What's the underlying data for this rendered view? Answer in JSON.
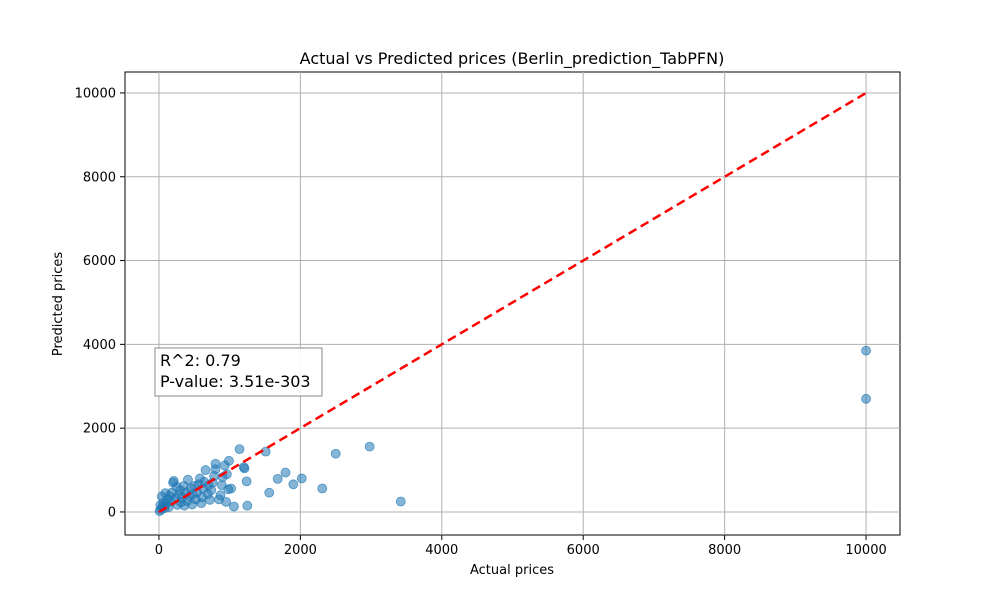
{
  "chart_data": {
    "type": "scatter",
    "title": "Actual vs Predicted prices (Berlin_prediction_TabPFN)",
    "xlabel": "Actual prices",
    "ylabel": "Predicted prices",
    "xlim": [
      -480,
      10480
    ],
    "ylim": [
      -550,
      10500
    ],
    "xticks": [
      0,
      2000,
      4000,
      6000,
      8000,
      10000
    ],
    "yticks": [
      0,
      2000,
      4000,
      6000,
      8000,
      10000
    ],
    "grid": true,
    "annotation": [
      "R^2: 0.79",
      "P-value: 3.51e-303"
    ],
    "reference_line": {
      "x": [
        0,
        10000
      ],
      "y": [
        0,
        10000
      ],
      "color": "#ff0000",
      "style": "dashed"
    },
    "series": [
      {
        "color": "#1f77b4",
        "points": [
          [
            10000,
            3850
          ],
          [
            10000,
            2700
          ],
          [
            3420,
            250
          ],
          [
            2980,
            1560
          ],
          [
            2500,
            1390
          ],
          [
            2310,
            560
          ],
          [
            2020,
            800
          ],
          [
            1900,
            660
          ],
          [
            1790,
            940
          ],
          [
            1680,
            790
          ],
          [
            1560,
            460
          ],
          [
            1510,
            1440
          ],
          [
            1250,
            150
          ],
          [
            1240,
            730
          ],
          [
            1200,
            1070
          ],
          [
            1210,
            1040
          ],
          [
            1140,
            1500
          ],
          [
            1060,
            130
          ],
          [
            1020,
            560
          ],
          [
            990,
            1220
          ],
          [
            980,
            540
          ],
          [
            960,
            900
          ],
          [
            950,
            240
          ],
          [
            930,
            1110
          ],
          [
            900,
            830
          ],
          [
            890,
            640
          ],
          [
            870,
            400
          ],
          [
            850,
            300
          ],
          [
            800,
            1150
          ],
          [
            800,
            1020
          ],
          [
            780,
            860
          ],
          [
            760,
            700
          ],
          [
            740,
            520
          ],
          [
            720,
            290
          ],
          [
            700,
            640
          ],
          [
            690,
            430
          ],
          [
            660,
            1000
          ],
          [
            640,
            720
          ],
          [
            620,
            560
          ],
          [
            610,
            350
          ],
          [
            600,
            210
          ],
          [
            580,
            800
          ],
          [
            560,
            660
          ],
          [
            540,
            470
          ],
          [
            520,
            300
          ],
          [
            500,
            620
          ],
          [
            480,
            420
          ],
          [
            470,
            180
          ],
          [
            450,
            560
          ],
          [
            430,
            380
          ],
          [
            410,
            770
          ],
          [
            400,
            260
          ],
          [
            380,
            470
          ],
          [
            360,
            150
          ],
          [
            350,
            620
          ],
          [
            330,
            350
          ],
          [
            310,
            230
          ],
          [
            300,
            520
          ],
          [
            280,
            410
          ],
          [
            260,
            170
          ],
          [
            250,
            600
          ],
          [
            230,
            320
          ],
          [
            210,
            740
          ],
          [
            200,
            700
          ],
          [
            180,
            460
          ],
          [
            170,
            250
          ],
          [
            150,
            380
          ],
          [
            140,
            120
          ],
          [
            120,
            300
          ],
          [
            100,
            190
          ],
          [
            90,
            450
          ],
          [
            80,
            90
          ],
          [
            60,
            220
          ],
          [
            50,
            120
          ],
          [
            40,
            370
          ],
          [
            30,
            60
          ],
          [
            20,
            160
          ],
          [
            10,
            20
          ]
        ]
      }
    ]
  }
}
